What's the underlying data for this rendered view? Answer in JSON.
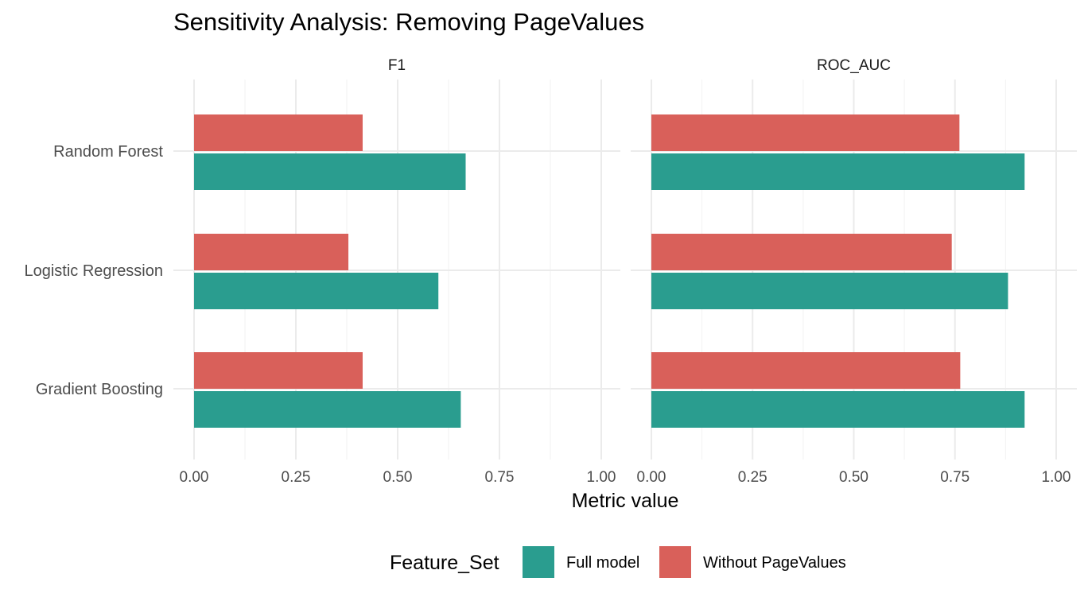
{
  "chart_data": {
    "type": "bar",
    "orientation": "horizontal",
    "title": "Sensitivity Analysis: Removing PageValues",
    "xlabel": "Metric value",
    "ylabel": "",
    "xlim": [
      0,
      1
    ],
    "x_ticks": [
      0,
      0.25,
      0.5,
      0.75,
      1.0
    ],
    "x_tick_labels": [
      "0.00",
      "0.25",
      "0.50",
      "0.75",
      "1.00"
    ],
    "grid": true,
    "facets": [
      "F1",
      "ROC_AUC"
    ],
    "categories": [
      "Random Forest",
      "Logistic Regression",
      "Gradient Boosting"
    ],
    "series": [
      {
        "name": "Without PageValues",
        "color": "#d9605a",
        "values": {
          "F1": [
            0.414,
            0.379,
            0.414
          ],
          "ROC_AUC": [
            0.761,
            0.742,
            0.763
          ]
        }
      },
      {
        "name": "Full model",
        "color": "#2a9d8f",
        "values": {
          "F1": [
            0.667,
            0.6,
            0.655
          ],
          "ROC_AUC": [
            0.922,
            0.881,
            0.922
          ]
        }
      }
    ],
    "legend": {
      "title": "Feature_Set",
      "placement": "bottom",
      "order": [
        "Full model",
        "Without PageValues"
      ]
    }
  }
}
